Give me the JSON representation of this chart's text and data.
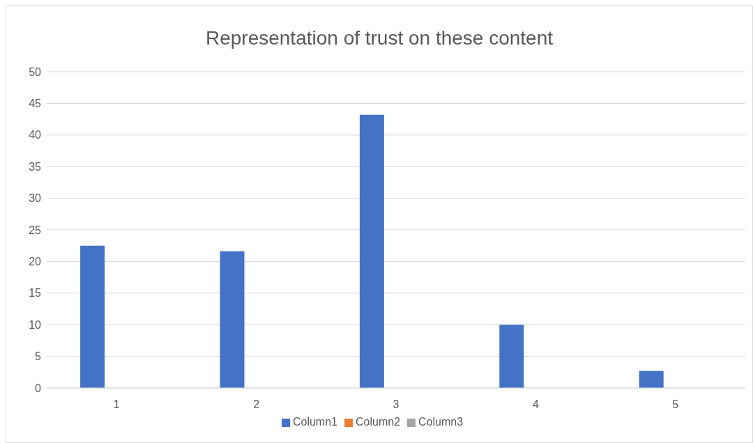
{
  "chart_data": {
    "type": "bar",
    "title": "Representation of trust on these content",
    "categories": [
      "1",
      "2",
      "3",
      "4",
      "5"
    ],
    "series": [
      {
        "name": "Column1",
        "color": "#4472c4",
        "values": [
          22.5,
          21.6,
          43.2,
          10.0,
          2.7
        ]
      },
      {
        "name": "Column2",
        "color": "#ed7d31",
        "values": [
          null,
          null,
          null,
          null,
          null
        ]
      },
      {
        "name": "Column3",
        "color": "#a5a5a5",
        "values": [
          null,
          null,
          null,
          null,
          null
        ]
      }
    ],
    "ylim": [
      0,
      50
    ],
    "yticks": [
      0,
      5,
      10,
      15,
      20,
      25,
      30,
      35,
      40,
      45,
      50
    ],
    "grid": "y",
    "legend": "bottom"
  }
}
